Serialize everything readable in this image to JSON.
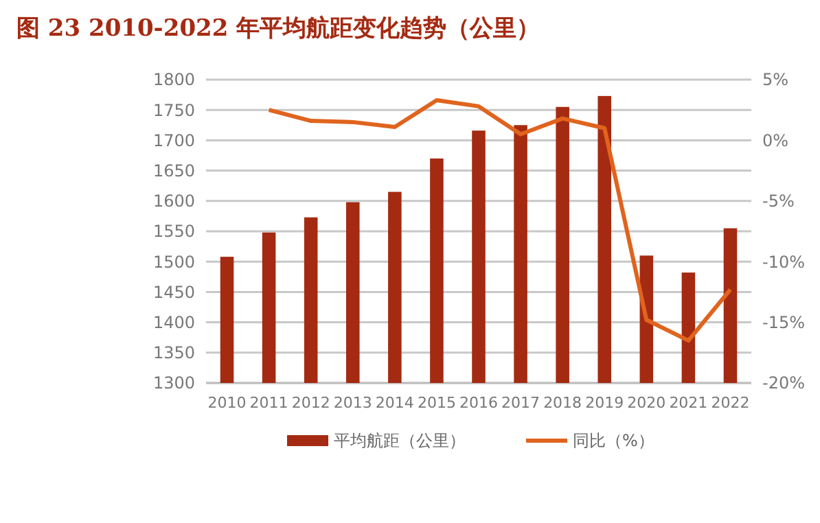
{
  "chart_data": {
    "type": "bar",
    "title": "图 23   2010-2022 年平均航距变化趋势（公里）",
    "categories": [
      "2010",
      "2011",
      "2012",
      "2013",
      "2014",
      "2015",
      "2016",
      "2017",
      "2018",
      "2019",
      "2020",
      "2021",
      "2022"
    ],
    "series": [
      {
        "name": "平均航距（公里）",
        "color": "#a52a12",
        "values": [
          1508,
          1548,
          1573,
          1598,
          1615,
          1670,
          1716,
          1725,
          1755,
          1773,
          1510,
          1482,
          1555
        ]
      },
      {
        "name": "同比（%）",
        "type": "line",
        "axis": "y2",
        "color": "#e0641e",
        "values": [
          null,
          2.5,
          1.6,
          1.5,
          1.1,
          3.3,
          2.8,
          0.5,
          1.8,
          1.0,
          -14.8,
          -16.5,
          -12.3
        ]
      }
    ],
    "ylim": [
      1300,
      1800
    ],
    "yticks": [
      1300,
      1350,
      1400,
      1450,
      1500,
      1550,
      1600,
      1650,
      1700,
      1750,
      1800
    ],
    "y2lim": [
      -20,
      5
    ],
    "y2ticks": [
      {
        "value": -20,
        "label": "-20%"
      },
      {
        "value": -15,
        "label": "-15%"
      },
      {
        "value": -10,
        "label": "-10%"
      },
      {
        "value": -5,
        "label": "-5%"
      },
      {
        "value": 0,
        "label": "0%"
      },
      {
        "value": 5,
        "label": "5%"
      }
    ],
    "grid": "y",
    "legend": "bottom",
    "marker": "none"
  }
}
